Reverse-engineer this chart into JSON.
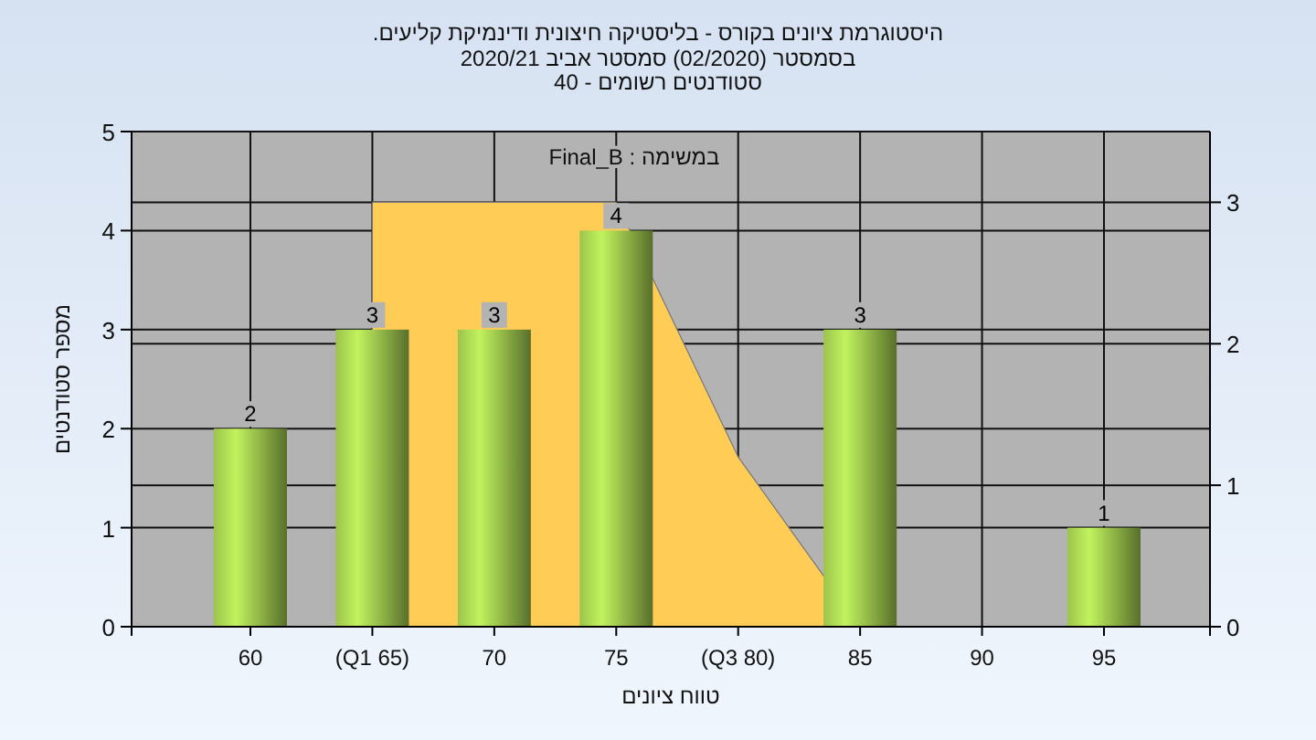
{
  "chart_data": {
    "type": "bar",
    "title": "היסטוגרמת ציונים בקורס - בליסטיקה חיצונית ודינמיקת קליעים.",
    "subtitle": "בסמסטר  (02/2020)  סמסטר אביב 2020/21\nסטודנטים רשומים - 40",
    "xlabel": "טווח ציונים",
    "ylabel": "מספר סטודנטים",
    "annotations": [
      "במשימה : Final_B"
    ],
    "categories": [
      "60",
      "(Q1 65)",
      "70",
      "75",
      "(Q3 80)",
      "85",
      "90",
      "95"
    ],
    "series": [
      {
        "color": "#9cc44c",
        "values": [
          2,
          3,
          3,
          4,
          null,
          3,
          null,
          1
        ],
        "value_labels": [
          "2",
          "3",
          "3",
          "4",
          null,
          "3",
          null,
          "1"
        ]
      },
      {
        "type": "area",
        "axis": "y2",
        "color": "#ffcc55",
        "values": [
          null,
          3,
          3,
          3,
          1.2,
          0,
          null,
          null
        ]
      }
    ],
    "ylim": [
      0,
      5
    ],
    "yticks": [
      0,
      1,
      2,
      3,
      4,
      5
    ],
    "y2lim": [
      0,
      3.5
    ],
    "y2ticks": [
      0,
      1,
      2,
      3
    ],
    "grid": true
  }
}
